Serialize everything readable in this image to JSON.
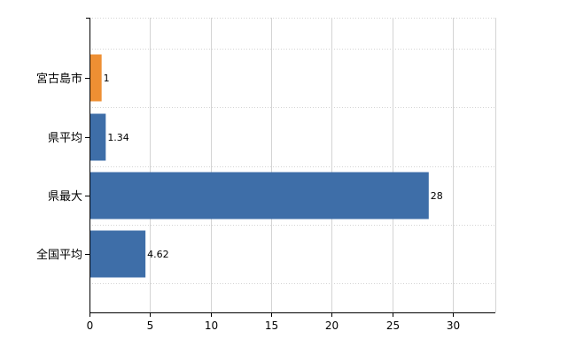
{
  "chart_data": {
    "type": "bar",
    "orientation": "horizontal",
    "categories": [
      "宮古島市",
      "県平均",
      "県最大",
      "全国平均"
    ],
    "values": [
      1,
      1.34,
      28,
      4.62
    ],
    "data_labels": [
      "1",
      "1.34",
      "28",
      "4.62"
    ],
    "colors": [
      "#ee8f33",
      "#3e6ea8",
      "#3e6ea8",
      "#3e6ea8"
    ],
    "xlim": [
      0,
      33.5
    ],
    "x_ticks": [
      0,
      5,
      10,
      15,
      20,
      25,
      30
    ],
    "x_tick_labels": [
      "0",
      "5",
      "10",
      "15",
      "20",
      "25",
      "30"
    ],
    "grid": true,
    "legend": "none",
    "title": "",
    "xlabel": "",
    "ylabel": ""
  }
}
